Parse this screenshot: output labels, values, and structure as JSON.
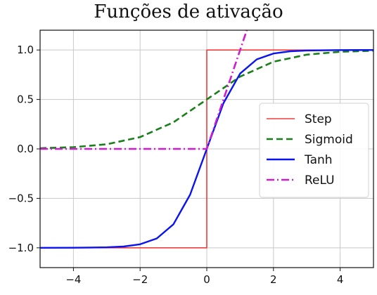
{
  "chart_data": {
    "type": "line",
    "title": "Funções de ativação",
    "xlabel": "",
    "ylabel": "",
    "xlim": [
      -5,
      5
    ],
    "ylim": [
      -1.2,
      1.2
    ],
    "x_ticks": [
      -4,
      -2,
      0,
      2,
      4
    ],
    "x_tick_labels": [
      "−4",
      "−2",
      "0",
      "2",
      "4"
    ],
    "y_ticks": [
      1.0,
      0.5,
      0.0,
      -0.5,
      -1.0
    ],
    "y_tick_labels": [
      "1.0",
      "0.5",
      "0.0",
      "−0.5",
      "−1.0"
    ],
    "grid": true,
    "legend_position": "center-right",
    "series": [
      {
        "name": "Step",
        "color": "#f03c3c",
        "style": "solid",
        "x": [
          -5,
          0,
          0,
          5
        ],
        "y": [
          -1,
          -1,
          1,
          1
        ]
      },
      {
        "name": "Sigmoid",
        "color": "#1a7f1a",
        "style": "dashed",
        "x": [
          -5,
          -4,
          -3,
          -2,
          -1,
          0,
          1,
          2,
          3,
          4,
          5
        ],
        "y": [
          0.007,
          0.018,
          0.047,
          0.119,
          0.269,
          0.5,
          0.731,
          0.881,
          0.953,
          0.982,
          0.993
        ]
      },
      {
        "name": "Tanh",
        "color": "#0a14f0",
        "style": "solid",
        "x": [
          -5,
          -4,
          -3,
          -2.5,
          -2,
          -1.5,
          -1,
          -0.5,
          0,
          0.5,
          1,
          1.5,
          2,
          2.5,
          3,
          4,
          5
        ],
        "y": [
          -1.0,
          -0.999,
          -0.995,
          -0.987,
          -0.964,
          -0.905,
          -0.762,
          -0.462,
          0.0,
          0.462,
          0.762,
          0.905,
          0.964,
          0.987,
          0.995,
          0.999,
          1.0
        ]
      },
      {
        "name": "ReLU",
        "color": "#cc1fcc",
        "style": "dashdot",
        "x": [
          -5,
          0,
          1.2
        ],
        "y": [
          0,
          0,
          1.2
        ]
      }
    ]
  }
}
